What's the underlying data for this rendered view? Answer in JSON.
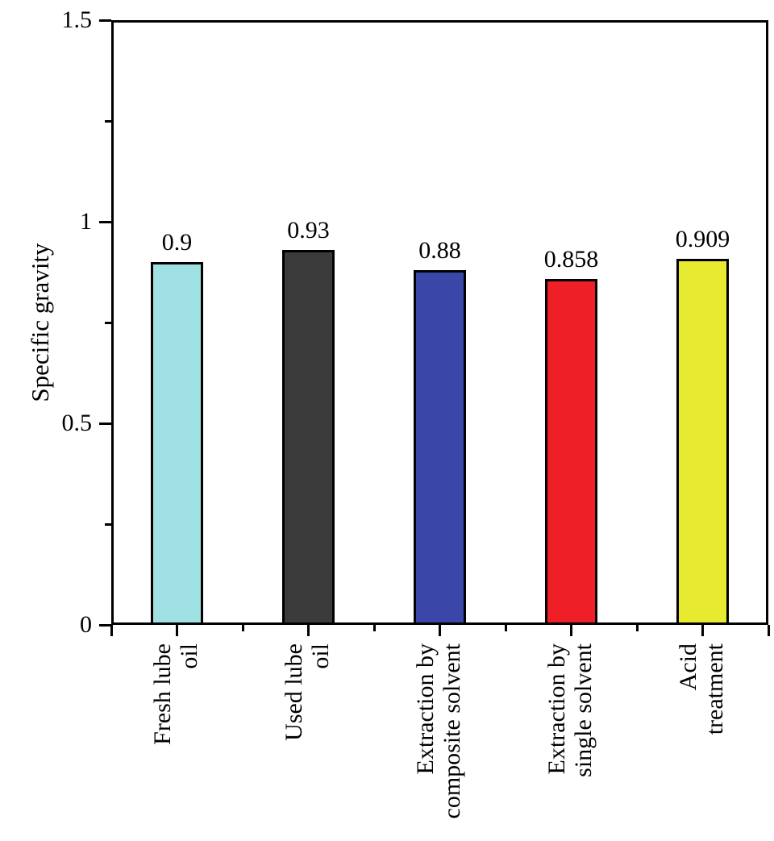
{
  "chart_data": {
    "type": "bar",
    "title": "",
    "xlabel": "",
    "ylabel": "Specific gravity",
    "ylim": [
      0,
      1.5
    ],
    "grid": false,
    "legend": null,
    "yticks": {
      "major_values": [
        0,
        0.5,
        1,
        1.5
      ],
      "major_labels": [
        "0",
        "0.5",
        "1",
        "1.5"
      ],
      "minor_values": [
        0.25,
        0.75,
        1.25
      ]
    },
    "categories": [
      "Fresh lube\noil",
      "Used lube\noil",
      "Extraction by\ncomposite solvent",
      "Extraction by\nsingle solvent",
      "Acid\ntreatment"
    ],
    "values": [
      0.9,
      0.93,
      0.88,
      0.858,
      0.909
    ],
    "value_labels": [
      "0.9",
      "0.93",
      "0.88",
      "0.858",
      "0.909"
    ],
    "bar_colors": [
      "#9fe0e3",
      "#3b3b3b",
      "#3a47a8",
      "#ee1f26",
      "#e8ea2f"
    ],
    "bar_border_color": "#000000",
    "axis_color": "#000000",
    "background_color": "#ffffff"
  }
}
